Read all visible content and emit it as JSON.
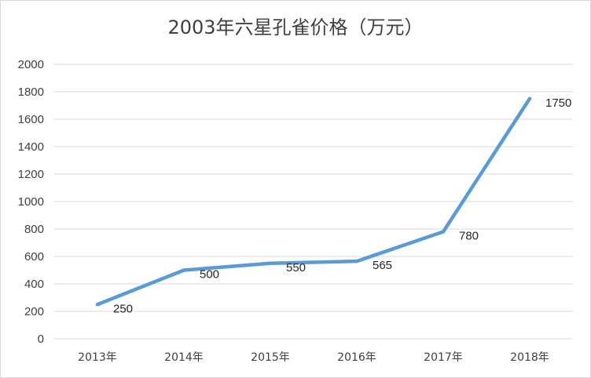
{
  "chart_data": {
    "type": "line",
    "title": "2003年六星孔雀价格（万元）",
    "categories": [
      "2013年",
      "2014年",
      "2015年",
      "2016年",
      "2017年",
      "2018年"
    ],
    "series": [
      {
        "values": [
          250,
          500,
          550,
          565,
          780,
          1750
        ]
      }
    ],
    "ylim": [
      0,
      2000
    ],
    "yticks": [
      0,
      200,
      400,
      600,
      800,
      1000,
      1200,
      1400,
      1600,
      1800,
      2000
    ],
    "grid": true,
    "data_labels": true,
    "line_color": "#5b9bd5",
    "grid_color": "#d9d9d9"
  }
}
